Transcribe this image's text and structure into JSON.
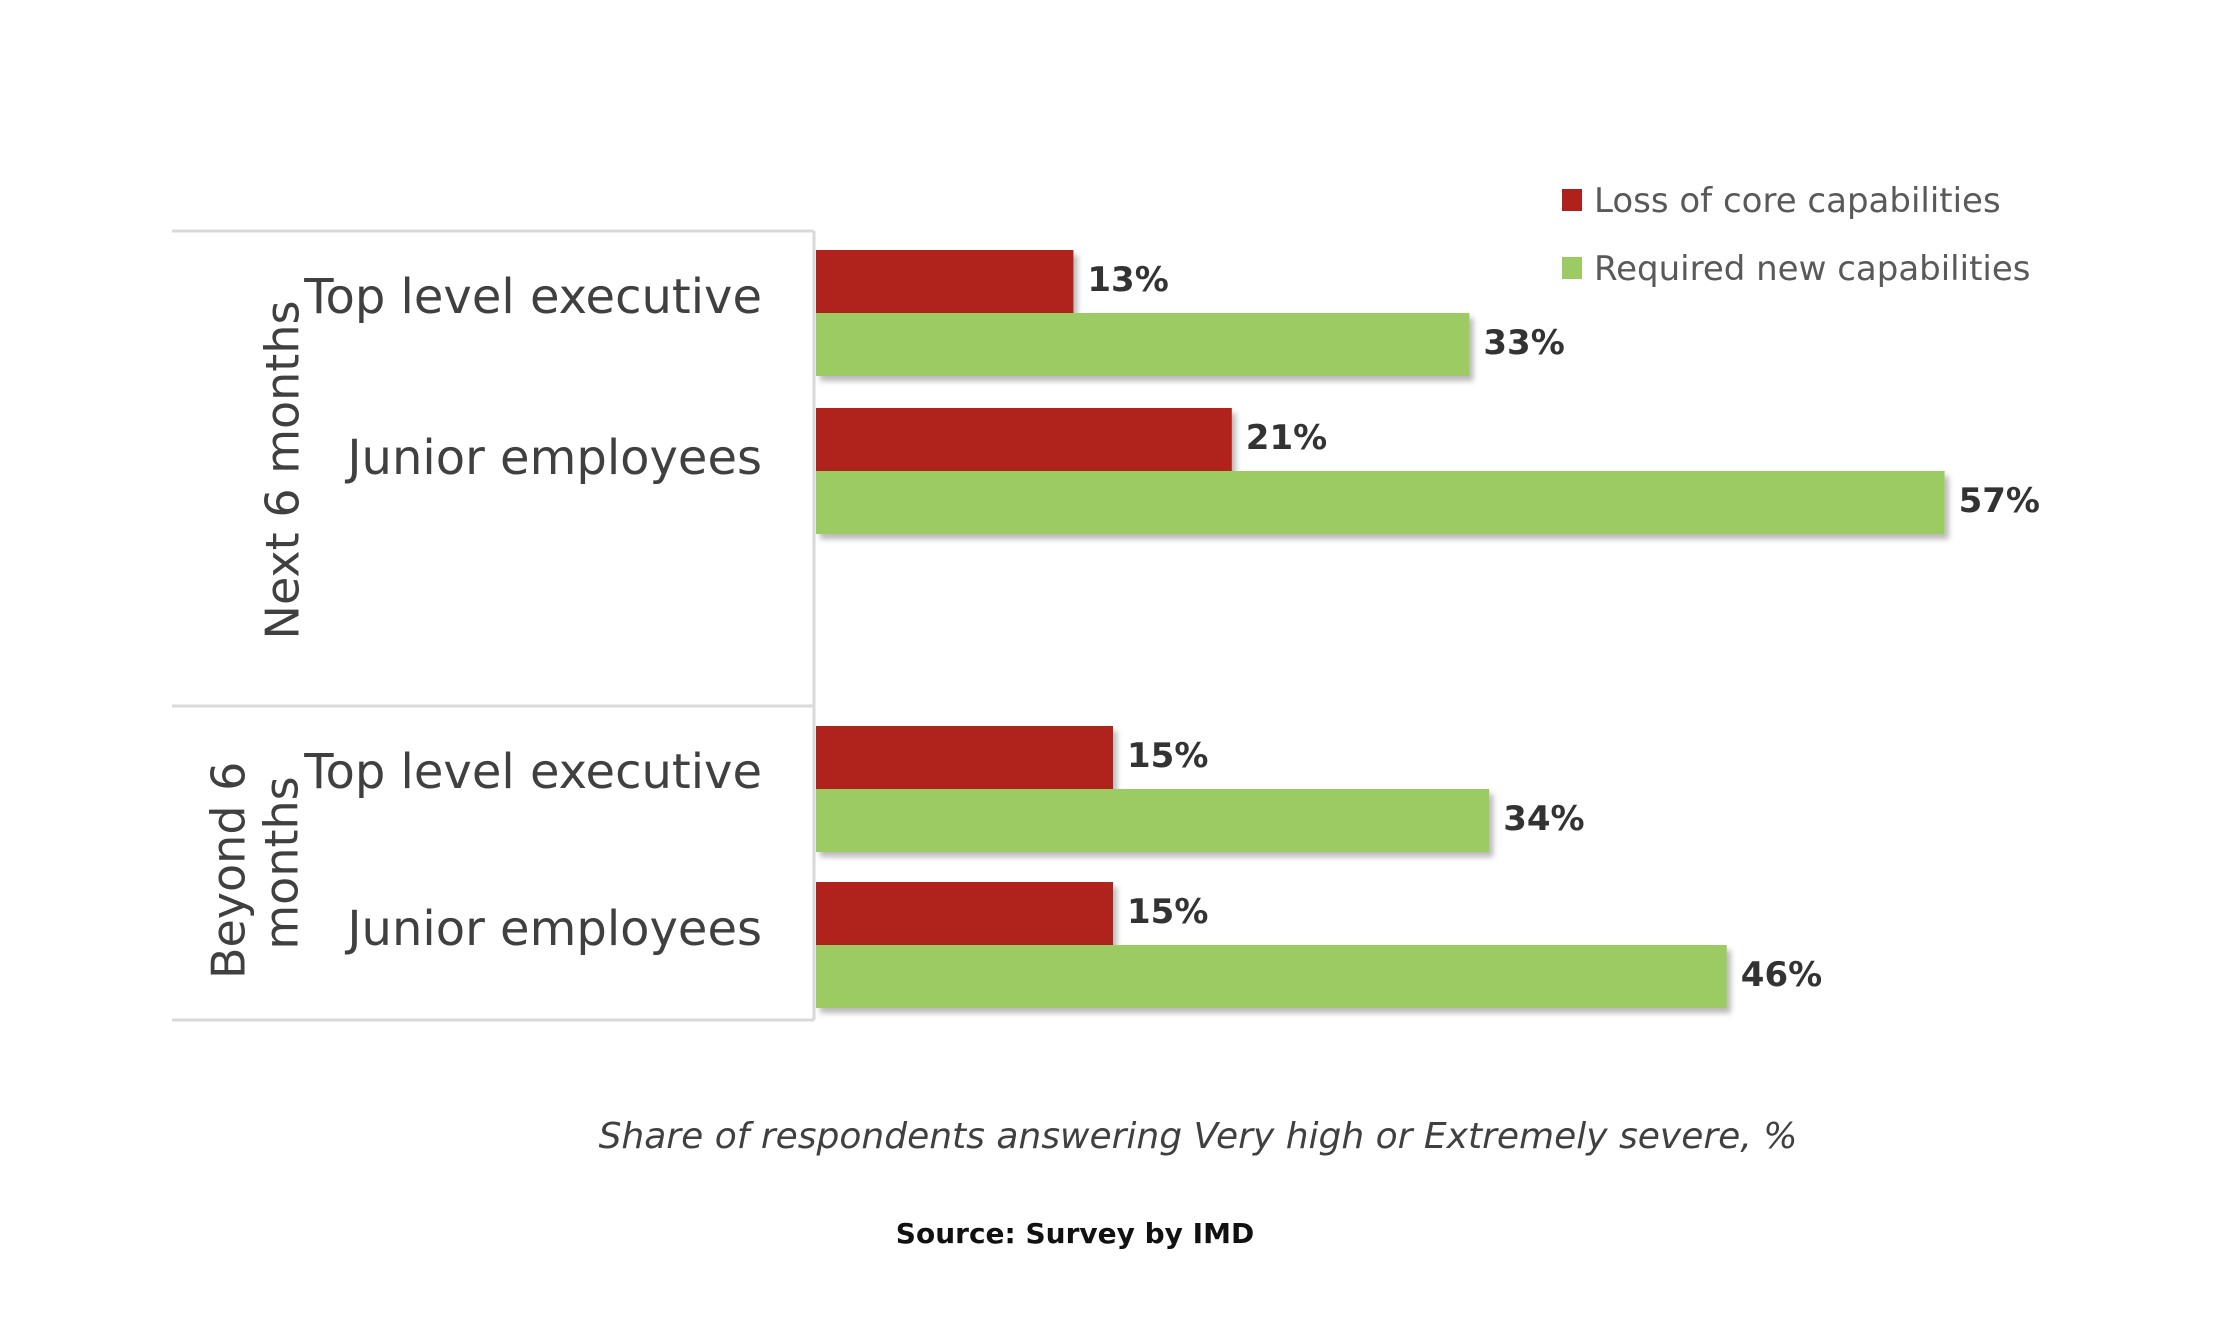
{
  "chart_data": {
    "type": "bar",
    "orientation": "horizontal",
    "groups": [
      {
        "label": "Next 6 months",
        "categories": [
          "Top level executive",
          "Junior employees"
        ]
      },
      {
        "label_lines": [
          "Beyond 6",
          "months"
        ],
        "categories": [
          "Top level executive",
          "Junior employees"
        ]
      }
    ],
    "series": [
      {
        "name": "Loss of core capabilities",
        "color": "#B0201C",
        "values": [
          13,
          21,
          15,
          15
        ],
        "value_labels": [
          "13%",
          "21%",
          "15%",
          "15%"
        ]
      },
      {
        "name": "Required new capabilities",
        "color": "#9BCB62",
        "values": [
          33,
          57,
          34,
          46
        ],
        "value_labels": [
          "33%",
          "57%",
          "34%",
          "46%"
        ]
      }
    ],
    "legend_position": "top-right",
    "xlim": [
      0,
      57
    ],
    "xlabel": "Share of respondents answering Very high or Extremely severe, %",
    "grid": false
  },
  "source": "Source: Survey by IMD"
}
